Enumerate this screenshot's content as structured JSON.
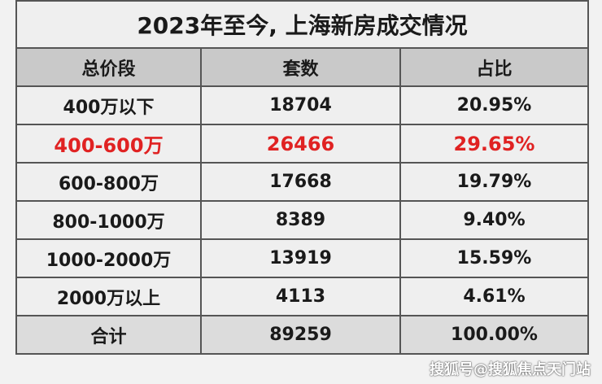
{
  "title": "2023年至今, 上海新房成交情况",
  "headers": [
    "总价段",
    "套数",
    "占比"
  ],
  "rows": [
    {
      "range": "400万以下",
      "count": "18704",
      "share": "20.95%",
      "highlight": false
    },
    {
      "range": "400-600万",
      "count": "26466",
      "share": "29.65%",
      "highlight": true
    },
    {
      "range": "600-800万",
      "count": "17668",
      "share": "19.79%",
      "highlight": false
    },
    {
      "range": "800-1000万",
      "count": "8389",
      "share": "9.40%",
      "highlight": false
    },
    {
      "range": "1000-2000万",
      "count": "13919",
      "share": "15.59%",
      "highlight": false
    },
    {
      "range": "2000万以上",
      "count": "4113",
      "share": "4.61%",
      "highlight": false
    }
  ],
  "total": {
    "label": "合计",
    "count": "89259",
    "share": "100.00%"
  },
  "watermark": "搜狐号@搜狐焦点天门站",
  "colors": {
    "highlight": "#e02222",
    "header_bg": "#c9c9c9",
    "total_bg": "#dcdcdc"
  }
}
